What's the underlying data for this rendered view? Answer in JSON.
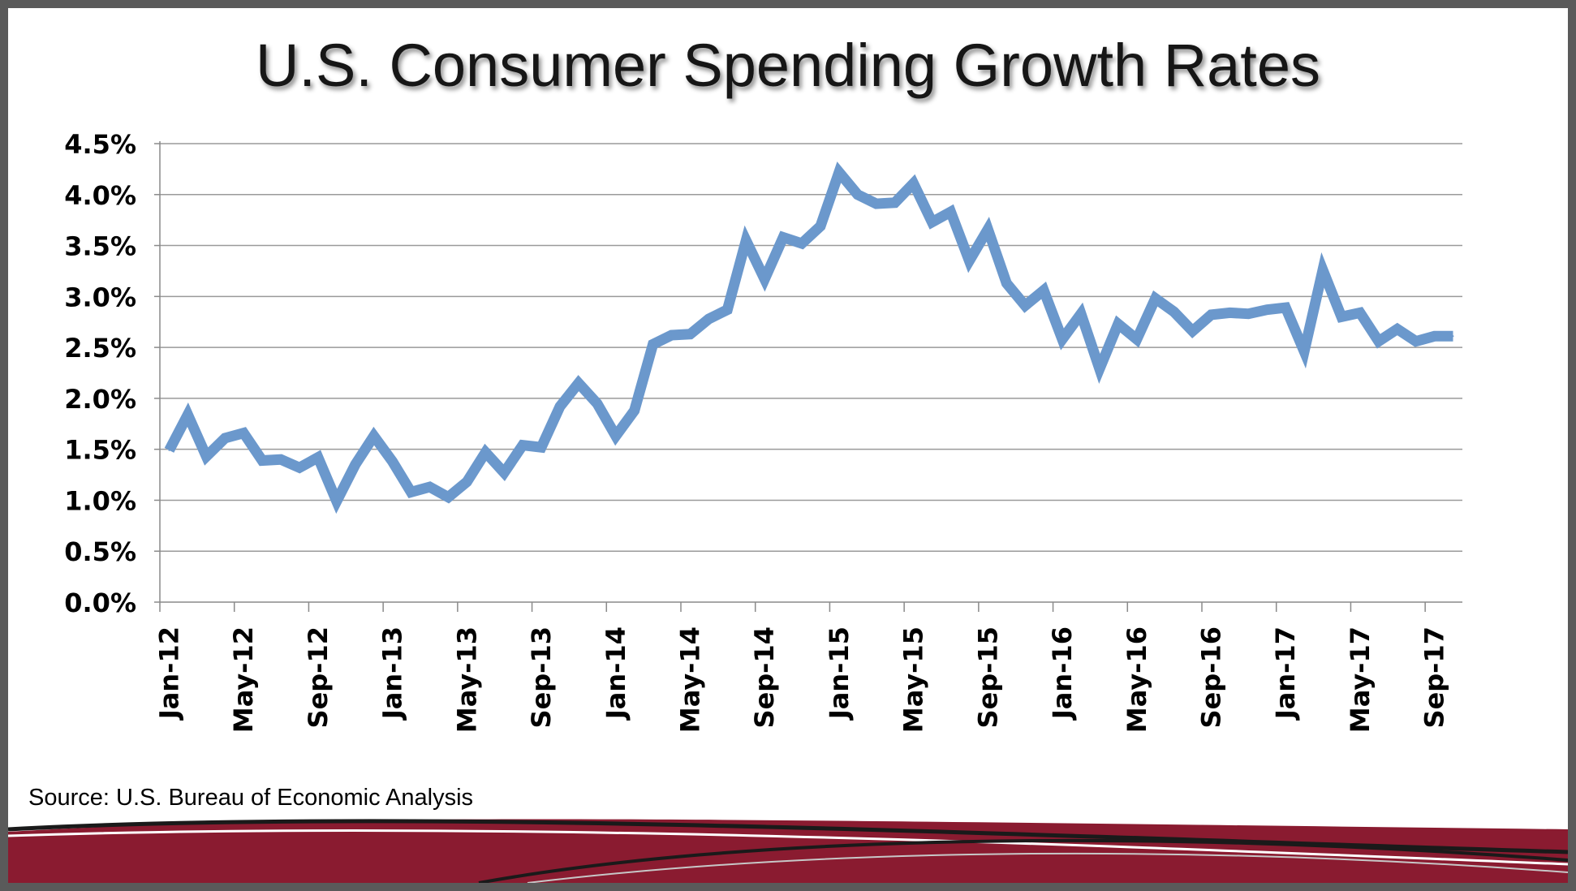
{
  "slide": {
    "source": "Source: U.S. Bureau of Economic Analysis"
  },
  "chart_data": {
    "type": "line",
    "title": "U.S. Consumer Spending Growth Rates",
    "xlabel": "",
    "ylabel": "",
    "ylim": [
      0,
      0.045
    ],
    "y_ticks": [
      "0.0%",
      "0.5%",
      "1.0%",
      "1.5%",
      "2.0%",
      "2.5%",
      "3.0%",
      "3.5%",
      "4.0%",
      "4.5%"
    ],
    "x_ticks": [
      "Jan-12",
      "May-12",
      "Sep-12",
      "Jan-13",
      "May-13",
      "Sep-13",
      "Jan-14",
      "May-14",
      "Sep-14",
      "Jan-15",
      "May-15",
      "Sep-15",
      "Jan-16",
      "May-16",
      "Sep-16",
      "Jan-17",
      "May-17",
      "Sep-17"
    ],
    "grid": true,
    "line_color": "#6b98cc",
    "categories": [
      "Jan-12",
      "Feb-12",
      "Mar-12",
      "Apr-12",
      "May-12",
      "Jun-12",
      "Jul-12",
      "Aug-12",
      "Sep-12",
      "Oct-12",
      "Nov-12",
      "Dec-12",
      "Jan-13",
      "Feb-13",
      "Mar-13",
      "Apr-13",
      "May-13",
      "Jun-13",
      "Jul-13",
      "Aug-13",
      "Sep-13",
      "Oct-13",
      "Nov-13",
      "Dec-13",
      "Jan-14",
      "Feb-14",
      "Mar-14",
      "Apr-14",
      "May-14",
      "Jun-14",
      "Jul-14",
      "Aug-14",
      "Sep-14",
      "Oct-14",
      "Nov-14",
      "Dec-14",
      "Jan-15",
      "Feb-15",
      "Mar-15",
      "Apr-15",
      "May-15",
      "Jun-15",
      "Jul-15",
      "Aug-15",
      "Sep-15",
      "Oct-15",
      "Nov-15",
      "Dec-15",
      "Jan-16",
      "Feb-16",
      "Mar-16",
      "Apr-16",
      "May-16",
      "Jun-16",
      "Jul-16",
      "Aug-16",
      "Sep-16",
      "Oct-16",
      "Nov-16",
      "Dec-16",
      "Jan-17",
      "Feb-17",
      "Mar-17",
      "Apr-17",
      "May-17",
      "Jun-17",
      "Jul-17",
      "Aug-17",
      "Sep-17",
      "Oct-17"
    ],
    "series": [
      {
        "values": [
          0.0149,
          0.0184,
          0.0143,
          0.0161,
          0.0166,
          0.0139,
          0.014,
          0.0132,
          0.0142,
          0.0099,
          0.0135,
          0.0163,
          0.0138,
          0.0108,
          0.0113,
          0.0103,
          0.0118,
          0.0147,
          0.0127,
          0.0154,
          0.0152,
          0.0192,
          0.0215,
          0.0195,
          0.0163,
          0.0188,
          0.0253,
          0.0262,
          0.0263,
          0.0278,
          0.0287,
          0.0355,
          0.0317,
          0.0358,
          0.0352,
          0.0369,
          0.0422,
          0.04,
          0.0391,
          0.0392,
          0.0411,
          0.0373,
          0.0383,
          0.0335,
          0.0366,
          0.0313,
          0.0291,
          0.0306,
          0.0258,
          0.0283,
          0.0229,
          0.0273,
          0.0258,
          0.0298,
          0.0285,
          0.0266,
          0.0282,
          0.0284,
          0.0283,
          0.0287,
          0.0289,
          0.0246,
          0.0326,
          0.028,
          0.0284,
          0.0256,
          0.0268,
          0.0256,
          0.0261,
          0.0261
        ]
      }
    ]
  }
}
